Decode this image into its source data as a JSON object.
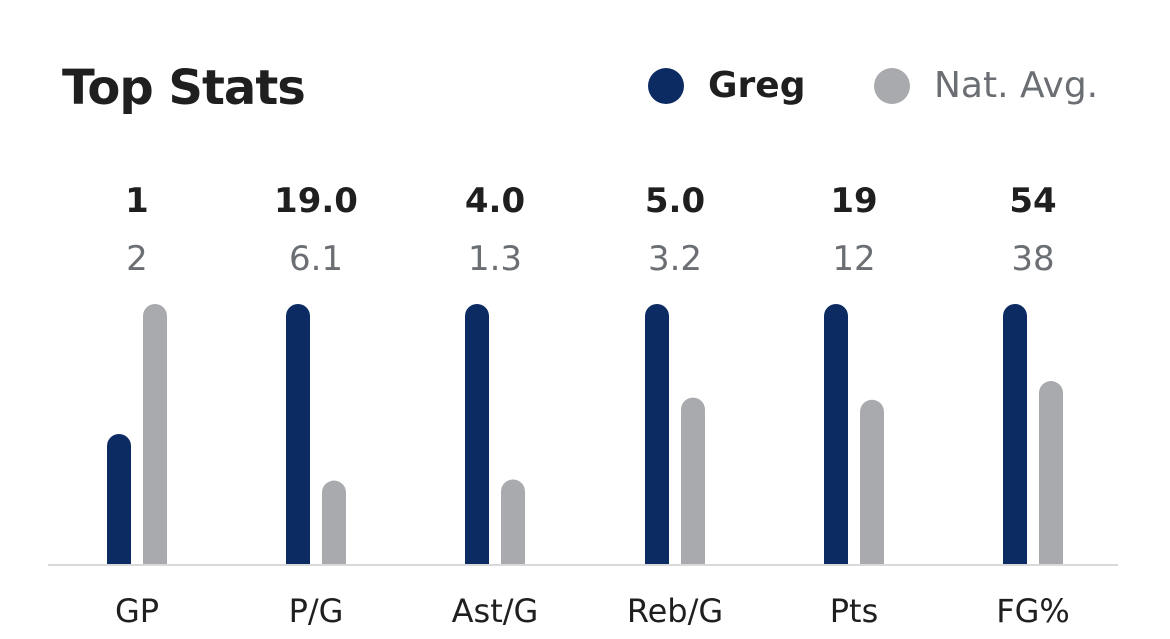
{
  "title": "Top Stats",
  "legend": {
    "player": "Greg",
    "average": "Nat. Avg."
  },
  "colors": {
    "player": "#0d2b63",
    "average": "#a8aaae",
    "baseline": "#d9d9dc"
  },
  "chart_data": {
    "type": "bar",
    "title": "Top Stats",
    "categories": [
      "GP",
      "P/G",
      "Ast/G",
      "Reb/G",
      "Pts",
      "FG%"
    ],
    "series": [
      {
        "name": "Greg",
        "values": [
          1,
          19.0,
          4.0,
          5.0,
          19,
          54
        ],
        "labels": [
          "1",
          "19.0",
          "4.0",
          "5.0",
          "19",
          "54"
        ]
      },
      {
        "name": "Nat. Avg.",
        "values": [
          2,
          6.1,
          1.3,
          3.2,
          12,
          38
        ],
        "labels": [
          "2",
          "6.1",
          "1.3",
          "3.2",
          "12",
          "38"
        ]
      }
    ],
    "scale": "per-category max",
    "legend_position": "top-right",
    "grid": false
  }
}
